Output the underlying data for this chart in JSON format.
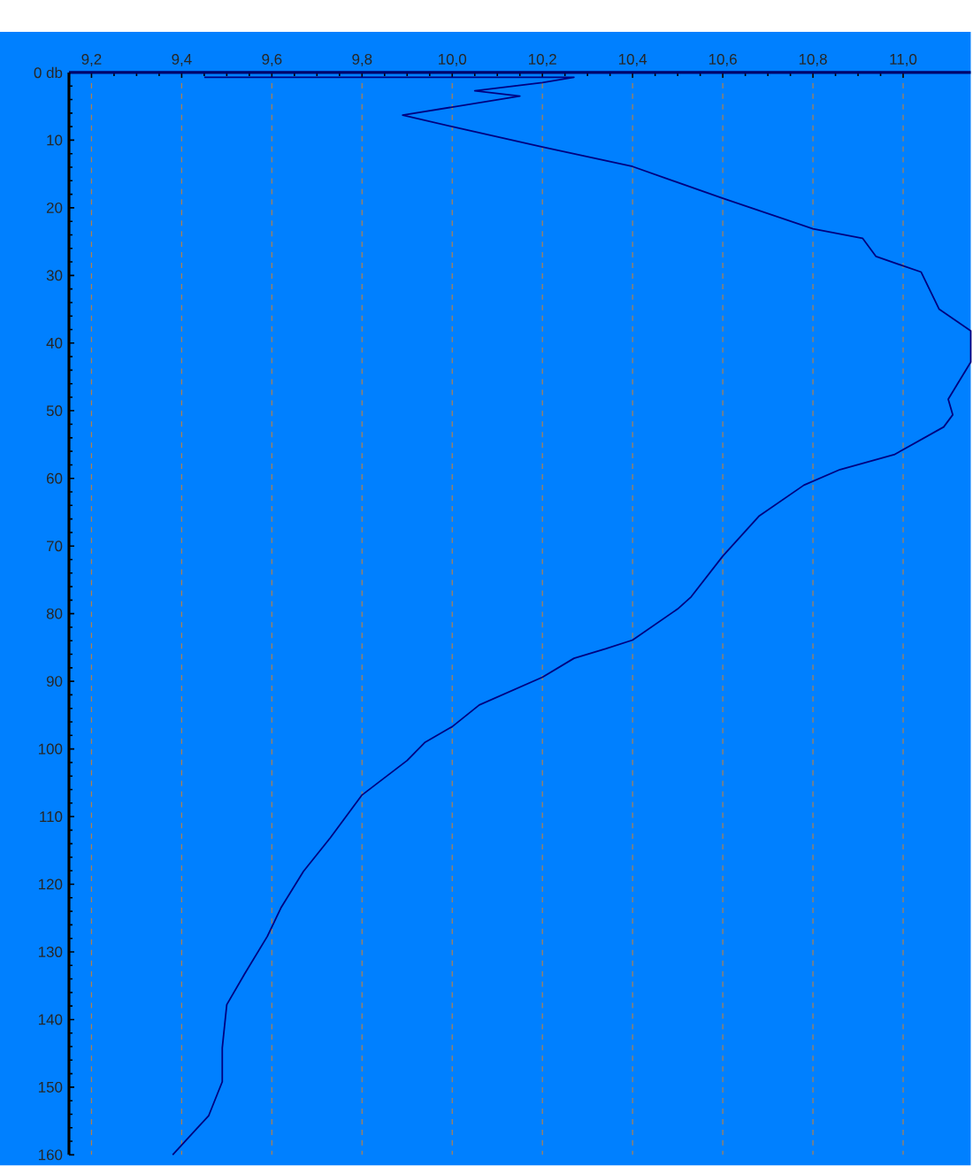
{
  "chart_data": {
    "type": "line",
    "xlim": [
      9.15,
      11.15
    ],
    "ylim": [
      160,
      0
    ],
    "xticks": [
      {
        "value": 9.2,
        "label": "9,2"
      },
      {
        "value": 9.4,
        "label": "9,4"
      },
      {
        "value": 9.6,
        "label": "9,6"
      },
      {
        "value": 9.8,
        "label": "9,8"
      },
      {
        "value": 10.0,
        "label": "10,0"
      },
      {
        "value": 10.2,
        "label": "10,2"
      },
      {
        "value": 10.4,
        "label": "10,4"
      },
      {
        "value": 10.6,
        "label": "10,6"
      },
      {
        "value": 10.8,
        "label": "10,8"
      },
      {
        "value": 11.0,
        "label": "11,0"
      }
    ],
    "yticks": [
      {
        "value": 0,
        "label": "0 db"
      },
      10,
      20,
      30,
      40,
      50,
      60,
      70,
      80,
      90,
      100,
      110,
      120,
      130,
      140,
      150,
      160
    ],
    "grid": "x",
    "marker": "none",
    "line_style": "solid",
    "series": [
      {
        "color": "#000080",
        "x": [
          9.45,
          10.27,
          10.2,
          10.05,
          10.15,
          9.89,
          10.0,
          10.2,
          10.4,
          10.6,
          10.8,
          10.91,
          10.94,
          11.04,
          11.08,
          11.15,
          11.15,
          11.1,
          11.11,
          11.09,
          10.98,
          10.86,
          10.78,
          10.68,
          10.6,
          10.53,
          10.5,
          10.4,
          10.34,
          10.27,
          10.2,
          10.06,
          10.0,
          9.94,
          9.9,
          9.8,
          9.73,
          9.67,
          9.62,
          9.59,
          9.54,
          9.5,
          9.49,
          9.49,
          9.46,
          9.38
        ],
        "values": [
          0.7,
          0.7,
          1.5,
          2.7,
          3.5,
          6.3,
          8,
          11,
          13.9,
          18.6,
          23.1,
          24.5,
          27.2,
          29.5,
          35,
          38.2,
          42.8,
          48.3,
          50.6,
          52.4,
          56.5,
          58.7,
          61,
          65.6,
          71.5,
          77.5,
          79.3,
          83.9,
          85.2,
          86.6,
          89.4,
          93.5,
          96.7,
          99,
          101.7,
          106.8,
          113.1,
          118.1,
          123.5,
          127.7,
          133.2,
          137.8,
          144.2,
          149.2,
          154.2,
          160
        ]
      }
    ]
  }
}
